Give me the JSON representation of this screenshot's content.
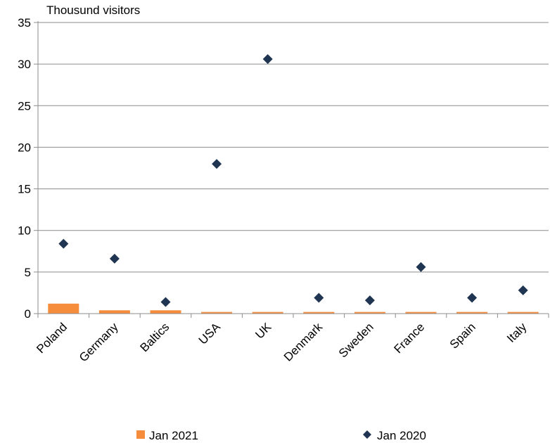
{
  "chart_data": {
    "type": "bar",
    "unit_label": "Thousund visitors",
    "categories": [
      "Poland",
      "Germany",
      "Baltics",
      "USA",
      "UK",
      "Denmark",
      "Sweden",
      "France",
      "Spain",
      "Italy"
    ],
    "series": [
      {
        "name": "Jan 2021",
        "type": "bar",
        "color": "#f58d3c",
        "values": [
          1.2,
          0.4,
          0.4,
          0.2,
          0.2,
          0.2,
          0.2,
          0.2,
          0.2,
          0.2
        ]
      },
      {
        "name": "Jan 2020",
        "type": "scatter",
        "marker": "diamond",
        "color": "#1f3552",
        "values": [
          8.4,
          6.6,
          1.4,
          18.0,
          30.6,
          1.9,
          1.6,
          5.6,
          1.9,
          2.8
        ]
      }
    ],
    "yticks": [
      0,
      5,
      10,
      15,
      20,
      25,
      30,
      35
    ],
    "ylim": [
      0,
      35
    ],
    "grid": true,
    "legend_position": "bottom"
  }
}
